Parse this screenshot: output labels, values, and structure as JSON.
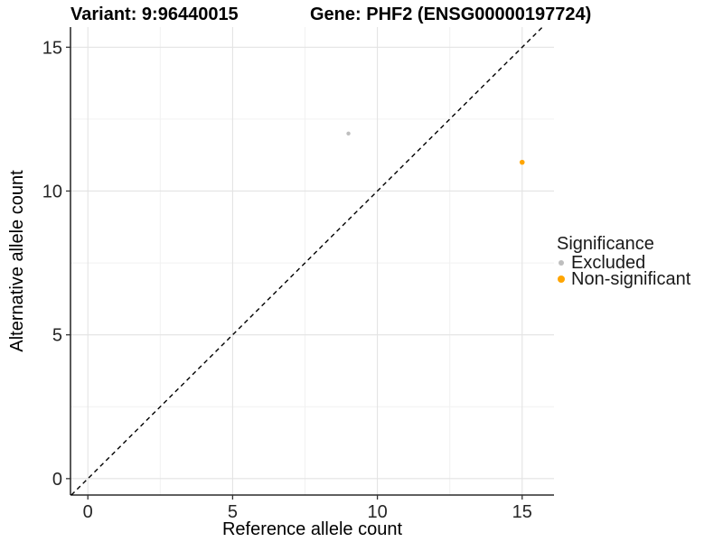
{
  "chart_data": {
    "type": "scatter",
    "title_left": "Variant: 9:96440015",
    "title_right": "Gene: PHF2 (ENSG00000197724)",
    "xlabel": "Reference allele count",
    "ylabel": "Alternative allele count",
    "xlim": [
      -0.6,
      16.1
    ],
    "ylim": [
      -0.57,
      15.7
    ],
    "x_ticks": [
      0,
      5,
      10,
      15
    ],
    "y_ticks": [
      0,
      5,
      10,
      15
    ],
    "x_minor_ticks": [
      2.5,
      7.5,
      12.5
    ],
    "y_minor_ticks": [
      2.5,
      7.5,
      12.5
    ],
    "grid": true,
    "legend_title": "Significance",
    "legend_position": "right",
    "reference_line": {
      "type": "identity",
      "equation": "y = x",
      "style": "dashed",
      "color": "#000000"
    },
    "series": [
      {
        "name": "Excluded",
        "color": "#BEBEBE",
        "marker_radius": 2.2,
        "points": [
          {
            "x": 9,
            "y": 12
          }
        ]
      },
      {
        "name": "Non-significant",
        "color": "#FFA500",
        "marker_radius": 2.8,
        "points": [
          {
            "x": 15,
            "y": 11
          }
        ]
      }
    ]
  },
  "colors": {
    "grid_major": "#E3E3E3",
    "grid_minor": "#F1F1F1",
    "axis_line": "#000000",
    "tick_mark": "#333333",
    "tick_label": "#262626",
    "axis_title": "#000000"
  }
}
